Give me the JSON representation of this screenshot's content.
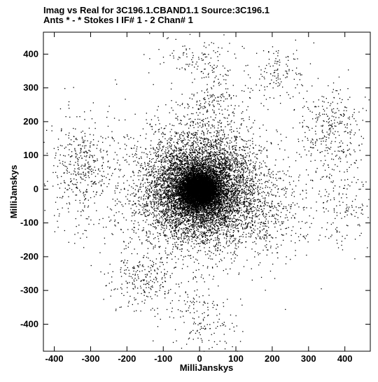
{
  "header": {
    "line1": "Imag vs Real for 3C196.1.CBAND1.1   Source:3C196.1",
    "line2": "Ants * - *     Stokes I   IF# 1 - 2   Chan# 1"
  },
  "chart_data": {
    "type": "scatter",
    "title": "Imag vs Real for 3C196.1.CBAND1.1   Source:3C196.1",
    "subtitle": "Ants * - *     Stokes I   IF# 1 - 2   Chan# 1",
    "xlabel": "MilliJanskys",
    "ylabel": "MilliJanskys",
    "xlim": [
      -430,
      470
    ],
    "ylim": [
      -480,
      465
    ],
    "xticks": [
      -400,
      -300,
      -200,
      -100,
      0,
      100,
      200,
      300,
      400
    ],
    "yticks": [
      -400,
      -300,
      -200,
      -100,
      0,
      100,
      200,
      300,
      400
    ],
    "grid": false,
    "marker_color": "#000000",
    "clusters": [
      {
        "cx": 0,
        "cy": 0,
        "sx": 26,
        "sy": 26,
        "n": 6000
      },
      {
        "cx": 0,
        "cy": 0,
        "sx": 75,
        "sy": 75,
        "n": 7000
      },
      {
        "cx": -10,
        "cy": 10,
        "sx": 120,
        "sy": 120,
        "n": 1200
      },
      {
        "cx": -330,
        "cy": 60,
        "sx": 45,
        "sy": 85,
        "n": 420
      },
      {
        "cx": 360,
        "cy": 170,
        "sx": 50,
        "sy": 65,
        "n": 330
      },
      {
        "cx": 390,
        "cy": -40,
        "sx": 45,
        "sy": 70,
        "n": 150
      },
      {
        "cx": 215,
        "cy": 345,
        "sx": 40,
        "sy": 40,
        "n": 120
      },
      {
        "cx": 40,
        "cy": 260,
        "sx": 40,
        "sy": 65,
        "n": 210
      },
      {
        "cx": -25,
        "cy": 385,
        "sx": 50,
        "sy": 30,
        "n": 80
      },
      {
        "cx": -155,
        "cy": -270,
        "sx": 45,
        "sy": 40,
        "n": 230
      },
      {
        "cx": 5,
        "cy": -385,
        "sx": 50,
        "sy": 50,
        "n": 160
      },
      {
        "cx": 195,
        "cy": -90,
        "sx": 55,
        "sy": 75,
        "n": 280
      }
    ]
  }
}
